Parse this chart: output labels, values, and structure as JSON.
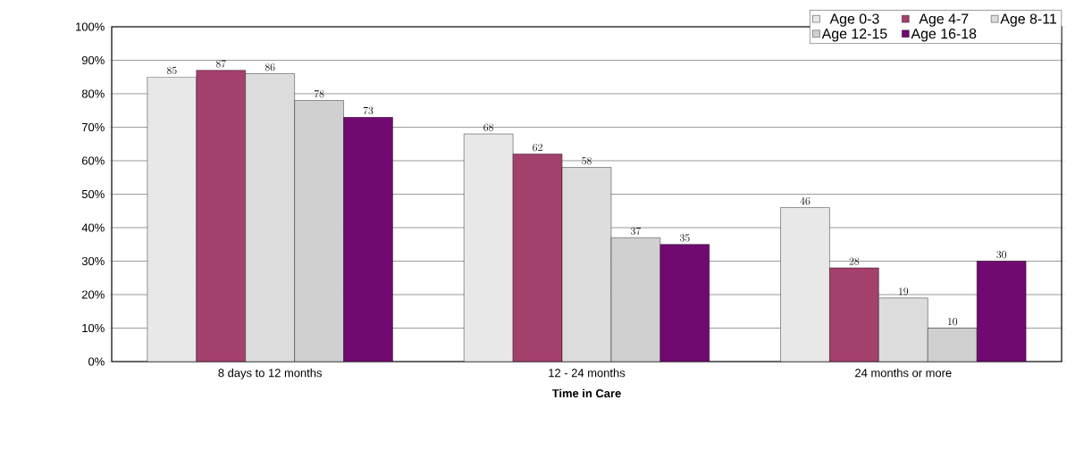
{
  "chart_data": {
    "type": "bar",
    "xlabel": "Time in Care",
    "categories": [
      "8 days to 12 months",
      "12 - 24 months",
      "24 months or more"
    ],
    "series": [
      {
        "name": "Age 0-3",
        "color": "#e8e8e8",
        "values": [
          85,
          68,
          46
        ]
      },
      {
        "name": "Age 4-7",
        "color": "#a4406c",
        "values": [
          87,
          62,
          28
        ]
      },
      {
        "name": "Age 8-11",
        "color": "#dcdcdc",
        "values": [
          86,
          58,
          19
        ]
      },
      {
        "name": "Age 12-15",
        "color": "#d0d0d0",
        "values": [
          78,
          37,
          10
        ]
      },
      {
        "name": "Age 16-18",
        "color": "#700a70",
        "values": [
          73,
          35,
          30
        ]
      }
    ],
    "ylim": [
      0,
      100
    ],
    "yticks": [
      {
        "value": 0,
        "label": "0%"
      },
      {
        "value": 10,
        "label": "10%"
      },
      {
        "value": 20,
        "label": "20%"
      },
      {
        "value": 30,
        "label": "30%"
      },
      {
        "value": 40,
        "label": "40%"
      },
      {
        "value": 50,
        "label": "50%"
      },
      {
        "value": 60,
        "label": "60%"
      },
      {
        "value": 70,
        "label": "70%"
      },
      {
        "value": 80,
        "label": "80%"
      },
      {
        "value": 90,
        "label": "90%"
      },
      {
        "value": 100,
        "label": "100%"
      }
    ],
    "grid": "y",
    "legend": "top right",
    "data_labels": true
  }
}
